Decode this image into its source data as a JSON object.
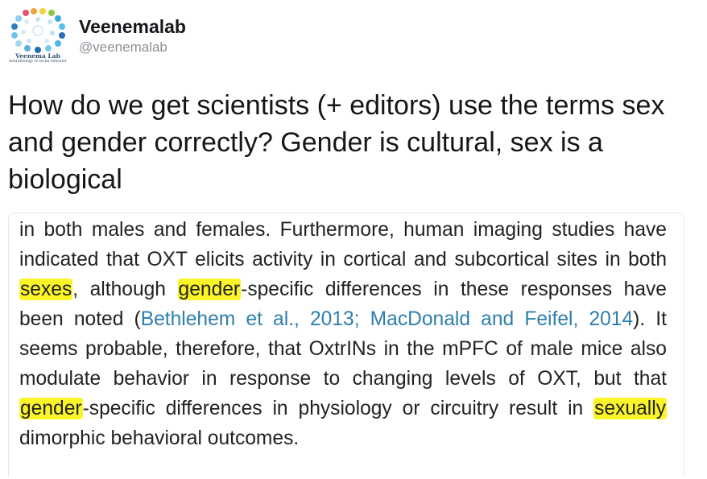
{
  "user": {
    "display_name": "Veenemalab",
    "screen_name": "@veenemalab",
    "avatar_caption": "Veenema Lab",
    "avatar_subcaption": "neurobiology of social behavior",
    "avatar_icon": "veenemalab-logo-icon"
  },
  "tweet": {
    "text": "How do we get scientists (+ editors) use the terms sex and gender correctly? Gender is cultural, sex is a biological"
  },
  "excerpt": {
    "s1": "in both males and females. Furthermore, human imaging studies have indicated that OXT elicits activity in cortical and subcortical sites in both ",
    "hl1": "sexes",
    "s2": ", although ",
    "hl2": "gender",
    "s3": "-specific differences in these responses have been noted (",
    "cite": "Bethlehem et al., 2013; MacDonald and Feifel, 2014",
    "s4": "). It seems probable, therefore, that OxtrINs in the mPFC of male mice also modulate behavior in response to changing levels of OXT, but that ",
    "hl3": "gender",
    "s5": "-specific differences in physiology or circuitry result in ",
    "hl4": "sexually",
    "s6": " dimorphic behavioral outcomes."
  },
  "colors": {
    "highlight": "#fbf428",
    "citation": "#2e7fae",
    "screen_name": "#8a9197"
  }
}
